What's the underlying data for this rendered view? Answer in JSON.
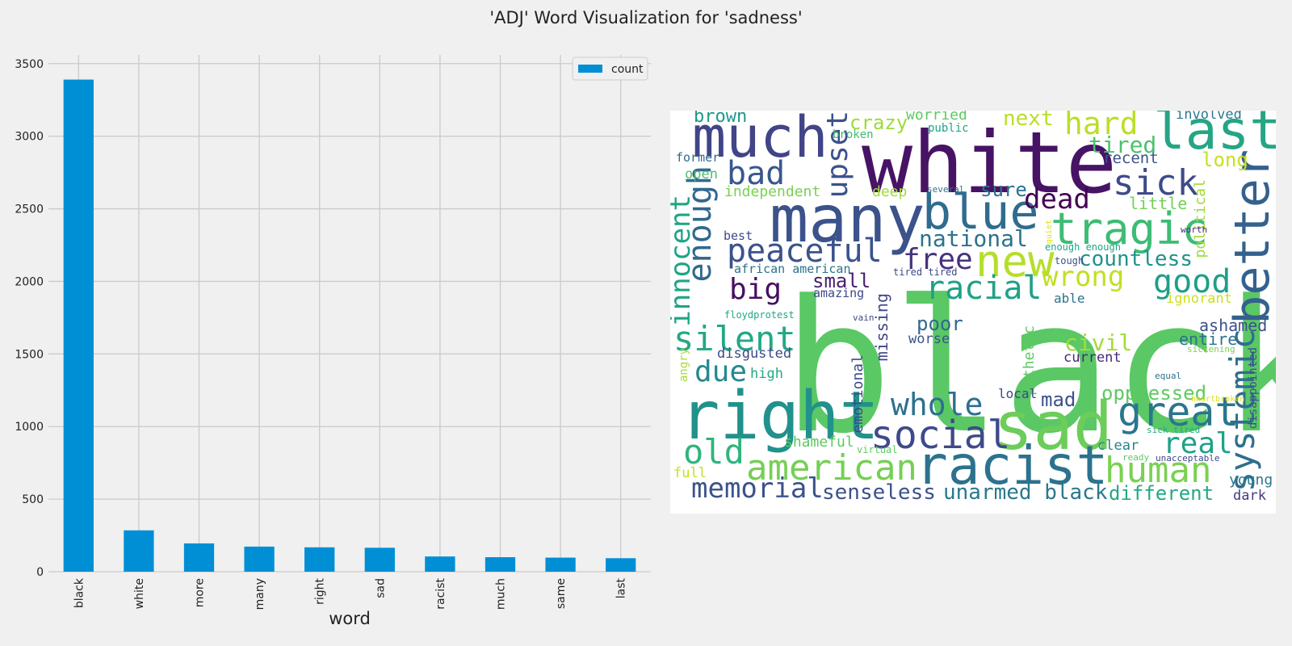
{
  "figure_title": "'ADJ' Word Visualization for 'sadness'",
  "chart_data": [
    {
      "type": "bar",
      "categories": [
        "black",
        "white",
        "more",
        "many",
        "right",
        "sad",
        "racist",
        "much",
        "same",
        "last"
      ],
      "series": [
        {
          "name": "count",
          "values": [
            3390,
            285,
            195,
            173,
            168,
            165,
            105,
            100,
            97,
            93
          ],
          "color": "#008fd5"
        }
      ],
      "xlabel": "word",
      "ylabel": "",
      "ylim": [
        0,
        3560
      ],
      "yticks": [
        0,
        500,
        1000,
        1500,
        2000,
        2500,
        3000,
        3500
      ],
      "grid": true,
      "legend": "top-right"
    },
    {
      "type": "wordcloud",
      "background": "#ffffff",
      "words": [
        {
          "text": "black",
          "color": "#5ac864"
        },
        {
          "text": "white",
          "color": "#471365"
        },
        {
          "text": "many",
          "color": "#3b528b"
        },
        {
          "text": "right",
          "color": "#21918c"
        },
        {
          "text": "sad",
          "color": "#6ccd5a"
        },
        {
          "text": "racist",
          "color": "#2c728e"
        },
        {
          "text": "much",
          "color": "#414487"
        },
        {
          "text": "last",
          "color": "#25a584"
        },
        {
          "text": "better",
          "color": "#34618d"
        },
        {
          "text": "tragic",
          "color": "#3dbc74"
        },
        {
          "text": "blue",
          "color": "#2f6c8e"
        },
        {
          "text": "new",
          "color": "#b5de2b"
        },
        {
          "text": "social",
          "color": "#3e4a89"
        },
        {
          "text": "great",
          "color": "#2a768e"
        },
        {
          "text": "american",
          "color": "#75d054"
        },
        {
          "text": "human",
          "color": "#7ad151"
        },
        {
          "text": "peaceful",
          "color": "#3b528b"
        },
        {
          "text": "enough",
          "color": "#31688e"
        },
        {
          "text": "systemic",
          "color": "#2e6f8e"
        },
        {
          "text": "whole",
          "color": "#2d708e"
        },
        {
          "text": "silent",
          "color": "#22a884"
        },
        {
          "text": "racial",
          "color": "#1fa187"
        },
        {
          "text": "old",
          "color": "#2fb47c"
        },
        {
          "text": "memorial",
          "color": "#3b528b"
        },
        {
          "text": "innocent",
          "color": "#20a486"
        },
        {
          "text": "sick",
          "color": "#3e4a89"
        },
        {
          "text": "bad",
          "color": "#38588c"
        },
        {
          "text": "upset",
          "color": "#3b528b"
        },
        {
          "text": "good",
          "color": "#1f9e89"
        },
        {
          "text": "hard",
          "color": "#bade28"
        },
        {
          "text": "wrong",
          "color": "#c2df23"
        },
        {
          "text": "free",
          "color": "#46337e"
        },
        {
          "text": "dead",
          "color": "#440154"
        },
        {
          "text": "due",
          "color": "#23898e"
        },
        {
          "text": "real",
          "color": "#1fa188"
        },
        {
          "text": "big",
          "color": "#471063"
        },
        {
          "text": "senseless",
          "color": "#3b528b"
        },
        {
          "text": "unarmed black",
          "color": "#2a788e"
        },
        {
          "text": "national",
          "color": "#2c728e"
        },
        {
          "text": "countless",
          "color": "#21918c"
        },
        {
          "text": "different",
          "color": "#23a983"
        },
        {
          "text": "oppressed",
          "color": "#5ec962"
        },
        {
          "text": "civil",
          "color": "#a5db36"
        },
        {
          "text": "tired",
          "color": "#4ac16d"
        },
        {
          "text": "crazy",
          "color": "#9fda3a"
        },
        {
          "text": "next",
          "color": "#b8de29"
        },
        {
          "text": "sure",
          "color": "#2c728e"
        },
        {
          "text": "long",
          "color": "#c8e020"
        },
        {
          "text": "poor",
          "color": "#31688e"
        },
        {
          "text": "mad",
          "color": "#3b528b"
        },
        {
          "text": "small",
          "color": "#481f70"
        },
        {
          "text": "ashamed",
          "color": "#3b528b"
        },
        {
          "text": "missing",
          "color": "#3f4788"
        },
        {
          "text": "brown",
          "color": "#1f988b"
        },
        {
          "text": "shameful",
          "color": "#5ec962"
        },
        {
          "text": "emotional",
          "color": "#3e4989"
        },
        {
          "text": "pathetic",
          "color": "#5ec962"
        },
        {
          "text": "little",
          "color": "#73d056"
        },
        {
          "text": "political",
          "color": "#a2da37"
        },
        {
          "text": "independent",
          "color": "#7ad151"
        },
        {
          "text": "deep",
          "color": "#a0da39"
        },
        {
          "text": "disgusted",
          "color": "#3e4989"
        },
        {
          "text": "high",
          "color": "#22a884"
        },
        {
          "text": "entire",
          "color": "#2c728e"
        },
        {
          "text": "worse",
          "color": "#3b528b"
        },
        {
          "text": "clear",
          "color": "#25848e"
        },
        {
          "text": "young",
          "color": "#2a788e"
        },
        {
          "text": "dark",
          "color": "#443983"
        },
        {
          "text": "current",
          "color": "#482878"
        },
        {
          "text": "ignorant",
          "color": "#cae11f"
        },
        {
          "text": "full",
          "color": "#c8e020"
        },
        {
          "text": "worried",
          "color": "#5ec962"
        },
        {
          "text": "public",
          "color": "#20a386"
        },
        {
          "text": "broken",
          "color": "#3fbc73"
        },
        {
          "text": "recent",
          "color": "#3b528b"
        },
        {
          "text": "involved",
          "color": "#2a788e"
        },
        {
          "text": "former",
          "color": "#31688e"
        },
        {
          "text": "open",
          "color": "#4ac16d"
        },
        {
          "text": "best",
          "color": "#3e4989"
        },
        {
          "text": "african american",
          "color": "#2c728e"
        },
        {
          "text": "amazing",
          "color": "#3e4989"
        },
        {
          "text": "able",
          "color": "#2c728e"
        },
        {
          "text": "local",
          "color": "#3e4989"
        },
        {
          "text": "angry",
          "color": "#a8db34"
        },
        {
          "text": "disappointed",
          "color": "#3b528b"
        },
        {
          "text": "floydprotest",
          "color": "#22a884"
        },
        {
          "text": "vain",
          "color": "#3e4989"
        },
        {
          "text": "virtual",
          "color": "#5ec962"
        },
        {
          "text": "several",
          "color": "#2c728e"
        },
        {
          "text": "tough",
          "color": "#3b528b"
        },
        {
          "text": "enough enough",
          "color": "#20a386"
        },
        {
          "text": "tired tired",
          "color": "#3e4989"
        },
        {
          "text": "quiet",
          "color": "#dde318"
        },
        {
          "text": "worth",
          "color": "#482878"
        },
        {
          "text": "sickening",
          "color": "#7ad151"
        },
        {
          "text": "equal",
          "color": "#2c728e"
        },
        {
          "text": "heartbroken",
          "color": "#dde318"
        },
        {
          "text": "sick tired",
          "color": "#22a884"
        },
        {
          "text": "ready",
          "color": "#5ec962"
        },
        {
          "text": "unacceptable",
          "color": "#3e4989"
        }
      ]
    }
  ]
}
